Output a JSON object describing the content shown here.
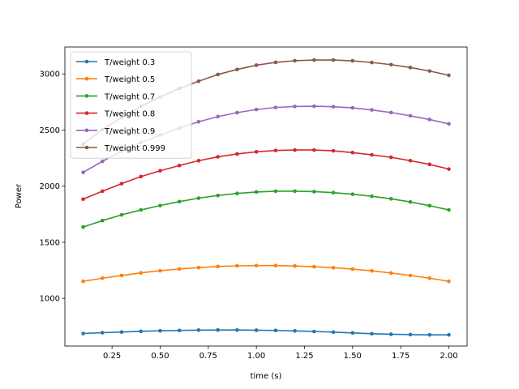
{
  "chart_data": {
    "type": "line",
    "title": "",
    "xlabel": "time (s)",
    "ylabel": "Power",
    "xlim": [
      0.005,
      2.095
    ],
    "ylim": [
      575,
      3240
    ],
    "xticks": [
      0.25,
      0.5,
      0.75,
      1.0,
      1.25,
      1.5,
      1.75,
      2.0
    ],
    "xtick_labels": [
      "0.25",
      "0.50",
      "0.75",
      "1.00",
      "1.25",
      "1.50",
      "1.75",
      "2.00"
    ],
    "yticks": [
      1000,
      1500,
      2000,
      2500,
      3000
    ],
    "ytick_labels": [
      "1000",
      "1500",
      "2000",
      "2500",
      "3000"
    ],
    "grid": false,
    "legend_position": "top-left",
    "x": [
      0.1,
      0.2,
      0.3,
      0.4,
      0.5,
      0.6,
      0.7,
      0.8,
      0.9,
      1.0,
      1.1,
      1.2,
      1.3,
      1.4,
      1.5,
      1.6,
      1.7,
      1.8,
      1.9,
      2.0
    ],
    "series": [
      {
        "name": "T/weight 0.3",
        "color": "#1f77b4",
        "values": [
          687,
          694,
          700,
          706,
          711,
          714,
          717,
          718,
          718,
          716,
          714,
          710,
          705,
          699,
          692,
          685,
          680,
          677,
          675,
          675
        ]
      },
      {
        "name": "T/weight 0.5",
        "color": "#ff7f0e",
        "values": [
          1152,
          1180,
          1204,
          1227,
          1246,
          1262,
          1274,
          1284,
          1290,
          1292,
          1292,
          1289,
          1282,
          1273,
          1261,
          1245,
          1226,
          1204,
          1180,
          1152
        ]
      },
      {
        "name": "T/weight 0.7",
        "color": "#2ca02c",
        "values": [
          1636,
          1693,
          1744,
          1788,
          1827,
          1862,
          1893,
          1917,
          1935,
          1948,
          1955,
          1955,
          1951,
          1942,
          1928,
          1910,
          1887,
          1859,
          1826,
          1788
        ]
      },
      {
        "name": "T/weight 0.8",
        "color": "#d62728",
        "values": [
          1884,
          1955,
          2022,
          2085,
          2137,
          2184,
          2227,
          2261,
          2287,
          2306,
          2318,
          2322,
          2322,
          2315,
          2299,
          2279,
          2257,
          2227,
          2194,
          2152
        ]
      },
      {
        "name": "T/weight 0.9",
        "color": "#9467bd",
        "values": [
          2123,
          2221,
          2313,
          2389,
          2455,
          2518,
          2574,
          2620,
          2655,
          2683,
          2701,
          2710,
          2712,
          2708,
          2698,
          2679,
          2656,
          2627,
          2594,
          2555
        ]
      },
      {
        "name": "T/weight 0.999",
        "color": "#8c564b",
        "values": [
          2375,
          2505,
          2610,
          2710,
          2795,
          2870,
          2935,
          2995,
          3040,
          3078,
          3103,
          3118,
          3124,
          3124,
          3117,
          3102,
          3083,
          3057,
          3026,
          2988
        ]
      }
    ]
  }
}
